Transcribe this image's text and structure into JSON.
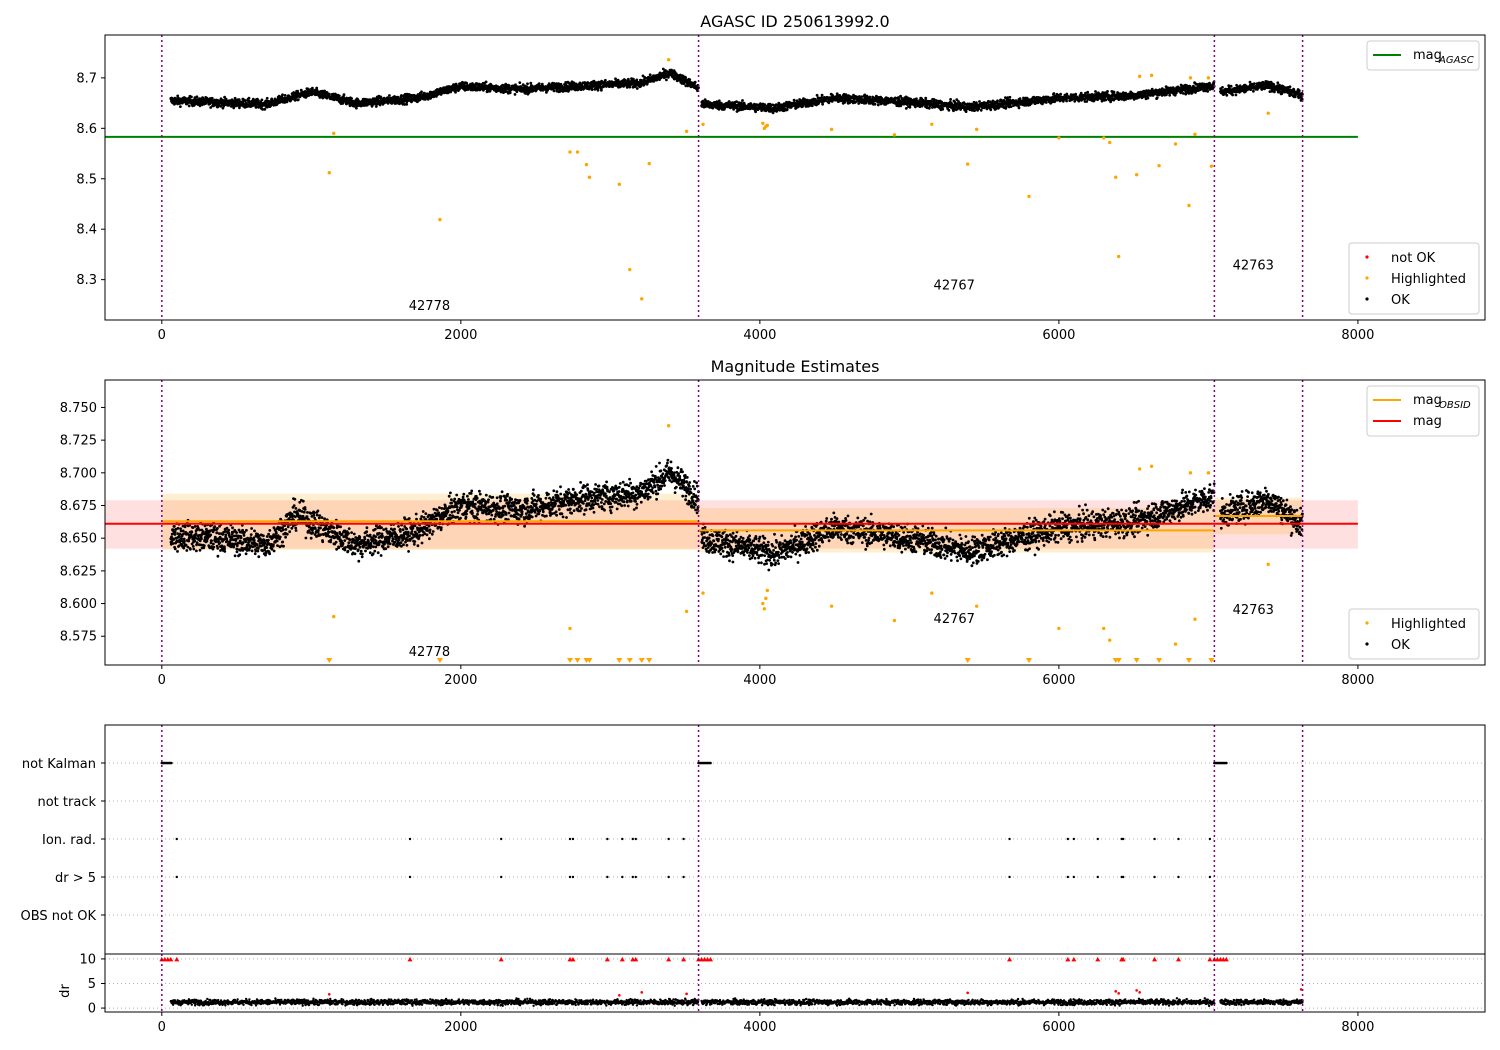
{
  "chart_data": [
    {
      "type": "scatter",
      "title": "AGASC ID 250613992.0",
      "xlim": [
        -380,
        8850
      ],
      "ylim": [
        8.22,
        8.785
      ],
      "xticks": [
        0,
        2000,
        4000,
        6000,
        8000
      ],
      "yticks": [
        8.3,
        8.4,
        8.5,
        8.6,
        8.7
      ],
      "yticklabels": [
        "8.3",
        "8.4",
        "8.5",
        "8.6",
        "8.7"
      ],
      "obsid_boundaries": [
        0,
        3590,
        7040,
        7630
      ],
      "obsid_labels": [
        {
          "text": "42778",
          "x": 1790,
          "y": 8.24
        },
        {
          "text": "42767",
          "x": 5300,
          "y": 8.28
        },
        {
          "text": "42763",
          "x": 7300,
          "y": 8.32
        }
      ],
      "legend_top": {
        "position": "top-right",
        "entries": [
          {
            "label": "mag",
            "sub": "AGASC",
            "color": "#008000"
          }
        ]
      },
      "legend_bottom": {
        "position": "bottom-right",
        "entries": [
          {
            "label": "not OK",
            "color": "#ff0000"
          },
          {
            "label": "Highlighted",
            "color": "#ffa500"
          },
          {
            "label": "OK",
            "color": "#000000"
          }
        ]
      },
      "lines": [
        {
          "name": "mag_AGASC",
          "color": "#008000",
          "x": [
            -380,
            8000
          ],
          "y": [
            8.583,
            8.583
          ]
        }
      ],
      "series": [
        {
          "name": "OK",
          "color": "#000000",
          "segments": [
            {
              "x0": 60,
              "x1": 3590,
              "base": [
                [
                  60,
                  8.655
                ],
                [
                  700,
                  8.648
                ],
                [
                  1000,
                  8.672
                ],
                [
                  1300,
                  8.65
                ],
                [
                  1700,
                  8.66
                ],
                [
                  2000,
                  8.683
                ],
                [
                  2400,
                  8.678
                ],
                [
                  2800,
                  8.684
                ],
                [
                  3200,
                  8.69
                ],
                [
                  3400,
                  8.71
                ],
                [
                  3590,
                  8.68
                ]
              ]
            },
            {
              "x0": 3610,
              "x1": 7040,
              "base": [
                [
                  3610,
                  8.648
                ],
                [
                  4100,
                  8.64
                ],
                [
                  4500,
                  8.66
                ],
                [
                  5000,
                  8.652
                ],
                [
                  5400,
                  8.642
                ],
                [
                  6000,
                  8.66
                ],
                [
                  6500,
                  8.665
                ],
                [
                  7040,
                  8.685
                ]
              ]
            },
            {
              "x0": 7080,
              "x1": 7630,
              "base": [
                [
                  7080,
                  8.672
                ],
                [
                  7400,
                  8.685
                ],
                [
                  7630,
                  8.665
                ]
              ]
            }
          ]
        },
        {
          "name": "Highlighted",
          "color": "#ffa500",
          "x": [
            1120,
            1150,
            1860,
            2730,
            2780,
            2840,
            2860,
            3060,
            3130,
            3210,
            3260,
            3390,
            3510,
            3620,
            4020,
            4030,
            4040,
            4050,
            4480,
            4900,
            5150,
            5390,
            5450,
            5800,
            6000,
            6300,
            6340,
            6380,
            6400,
            6520,
            6540,
            6620,
            6670,
            6780,
            6870,
            6880,
            6910,
            7000,
            7020,
            7400
          ],
          "y": [
            8.512,
            8.59,
            8.419,
            8.553,
            8.553,
            8.528,
            8.503,
            8.489,
            8.32,
            8.262,
            8.53,
            8.736,
            8.594,
            8.608,
            8.61,
            8.6,
            8.604,
            8.606,
            8.598,
            8.587,
            8.608,
            8.529,
            8.598,
            8.465,
            8.581,
            8.581,
            8.572,
            8.503,
            8.346,
            8.508,
            8.703,
            8.705,
            8.526,
            8.569,
            8.447,
            8.7,
            8.588,
            8.7,
            8.525,
            8.63
          ]
        }
      ]
    },
    {
      "type": "scatter",
      "title": "Magnitude Estimates",
      "xlim": [
        -380,
        8850
      ],
      "ylim": [
        8.553,
        8.771
      ],
      "xticks": [
        0,
        2000,
        4000,
        6000,
        8000
      ],
      "yticks": [
        8.575,
        8.6,
        8.625,
        8.65,
        8.675,
        8.7,
        8.725,
        8.75
      ],
      "yticklabels": [
        "8.575",
        "8.600",
        "8.625",
        "8.650",
        "8.675",
        "8.700",
        "8.725",
        "8.750"
      ],
      "obsid_boundaries": [
        0,
        3590,
        7040,
        7630
      ],
      "obsid_labels": [
        {
          "text": "42778",
          "x": 1790,
          "y": 8.56
        },
        {
          "text": "42767",
          "x": 5300,
          "y": 8.585
        },
        {
          "text": "42763",
          "x": 7300,
          "y": 8.592
        }
      ],
      "legend_top": {
        "position": "top-right",
        "entries": [
          {
            "label": "mag",
            "sub": "OBSID",
            "color": "#ffa500"
          },
          {
            "label": "mag",
            "sub": "",
            "color": "#ff0000"
          }
        ]
      },
      "legend_bottom": {
        "position": "bottom-right",
        "entries": [
          {
            "label": "Highlighted",
            "color": "#ffa500"
          },
          {
            "label": "OK",
            "color": "#000000"
          }
        ]
      },
      "bands": [
        {
          "x": [
            -380,
            8000
          ],
          "y": [
            8.642,
            8.679
          ],
          "color": "#ff0000",
          "opacity": 0.12
        },
        {
          "x": [
            0,
            3590
          ],
          "y": [
            8.641,
            8.684
          ],
          "color": "#ffa500",
          "opacity": 0.18
        },
        {
          "x": [
            3590,
            7040
          ],
          "y": [
            8.639,
            8.673
          ],
          "color": "#ffa500",
          "opacity": 0.18
        },
        {
          "x": [
            7040,
            7630
          ],
          "y": [
            8.653,
            8.681
          ],
          "color": "#ffa500",
          "opacity": 0.18
        }
      ],
      "lines": [
        {
          "name": "mag",
          "color": "#ff0000",
          "x": [
            -380,
            8000
          ],
          "y": [
            8.661,
            8.661
          ]
        },
        {
          "name": "mag_OBSID",
          "color": "#ffa500",
          "x": [
            0,
            3590
          ],
          "y": [
            8.663,
            8.663
          ]
        },
        {
          "name": "mag_OBSID",
          "color": "#ffa500",
          "x": [
            3590,
            7040
          ],
          "y": [
            8.656,
            8.656
          ]
        },
        {
          "name": "mag_OBSID",
          "color": "#ffa500",
          "x": [
            7040,
            7630
          ],
          "y": [
            8.667,
            8.667
          ]
        }
      ],
      "series": [
        {
          "name": "OK",
          "color": "#000000",
          "segments": [
            {
              "x0": 60,
              "x1": 3590,
              "base": [
                [
                  60,
                  8.652
                ],
                [
                  400,
                  8.65
                ],
                [
                  700,
                  8.645
                ],
                [
                  900,
                  8.668
                ],
                [
                  1300,
                  8.645
                ],
                [
                  1700,
                  8.655
                ],
                [
                  2000,
                  8.675
                ],
                [
                  2400,
                  8.672
                ],
                [
                  2800,
                  8.68
                ],
                [
                  3200,
                  8.685
                ],
                [
                  3400,
                  8.7
                ],
                [
                  3590,
                  8.68
                ]
              ]
            },
            {
              "x0": 3610,
              "x1": 7040,
              "base": [
                [
                  3610,
                  8.65
                ],
                [
                  4100,
                  8.638
                ],
                [
                  4500,
                  8.658
                ],
                [
                  5000,
                  8.65
                ],
                [
                  5400,
                  8.64
                ],
                [
                  6000,
                  8.658
                ],
                [
                  6500,
                  8.663
                ],
                [
                  7040,
                  8.682
                ]
              ]
            },
            {
              "x0": 7080,
              "x1": 7630,
              "base": [
                [
                  7080,
                  8.668
                ],
                [
                  7400,
                  8.68
                ],
                [
                  7630,
                  8.66
                ]
              ]
            }
          ]
        },
        {
          "name": "Highlighted",
          "color": "#ffa500",
          "x": [
            1150,
            2730,
            3390,
            3510,
            3620,
            4020,
            4030,
            4040,
            4050,
            4480,
            4900,
            5150,
            5450,
            6000,
            6300,
            6340,
            6540,
            6620,
            6780,
            6880,
            6910,
            7000,
            7400
          ],
          "y": [
            8.59,
            8.581,
            8.736,
            8.594,
            8.608,
            8.6,
            8.596,
            8.604,
            8.61,
            8.598,
            8.587,
            8.608,
            8.598,
            8.581,
            8.581,
            8.572,
            8.703,
            8.705,
            8.569,
            8.7,
            8.588,
            8.7,
            8.63
          ]
        },
        {
          "name": "Highlighted (below axis)",
          "color": "#ffa500",
          "marker": "triangle-down",
          "x": [
            1120,
            1860,
            2730,
            2780,
            2840,
            2860,
            3060,
            3130,
            3210,
            3260,
            5390,
            5800,
            6380,
            6400,
            6520,
            6670,
            6870,
            7020
          ],
          "y": [
            8.553,
            8.553,
            8.553,
            8.553,
            8.553,
            8.553,
            8.553,
            8.553,
            8.553,
            8.553,
            8.553,
            8.553,
            8.553,
            8.553,
            8.553,
            8.553,
            8.553,
            8.553
          ]
        }
      ]
    },
    {
      "type": "scatter",
      "title": "",
      "xlim": [
        -380,
        8850
      ],
      "xticks": [
        0,
        2000,
        4000,
        6000,
        8000
      ],
      "obsid_boundaries": [
        0,
        3590,
        7040,
        7630
      ],
      "flag_rows": [
        "not Kalman",
        "not track",
        "Ion. rad.",
        "dr > 5",
        "OBS not OK"
      ],
      "flags": {
        "not Kalman": [
          [
            0,
            70
          ],
          [
            3590,
            3670
          ],
          [
            7040,
            7120
          ]
        ],
        "not track": [],
        "Ion. rad.": [
          100,
          1660,
          2270,
          2730,
          2750,
          2980,
          3080,
          3150,
          3170,
          3390,
          3490,
          7010,
          5670,
          6060,
          6100,
          6260,
          6420,
          6430,
          6640,
          6800
        ],
        "dr > 5": [
          100,
          1660,
          2270,
          2730,
          2750,
          2980,
          3080,
          3150,
          3170,
          3390,
          3490,
          7010,
          5670,
          6060,
          6100,
          6260,
          6420,
          6430,
          6640,
          6800
        ],
        "OBS not OK": []
      },
      "dr_panel": {
        "ylabel": "dr",
        "ylim": [
          -0.8,
          11
        ],
        "yticks": [
          0,
          5,
          10
        ],
        "yticklabels": [
          "0",
          "5",
          "10"
        ],
        "segments": [
          [
            60,
            3590
          ],
          [
            3610,
            7040
          ],
          [
            7080,
            7630
          ]
        ],
        "typical": 1.2,
        "clipped_red_x": [
          0,
          20,
          40,
          60,
          100,
          1660,
          2270,
          2730,
          2750,
          2980,
          3080,
          3150,
          3170,
          3390,
          3490,
          3590,
          3610,
          3630,
          3650,
          3670,
          5670,
          6060,
          6100,
          6260,
          6420,
          6430,
          6640,
          6800,
          7010,
          7040,
          7060,
          7080,
          7100,
          7120
        ],
        "red_points": [
          [
            1120,
            2.8
          ],
          [
            3060,
            2.6
          ],
          [
            3210,
            3.2
          ],
          [
            3510,
            2.9
          ],
          [
            5390,
            3.1
          ],
          [
            6380,
            3.4
          ],
          [
            6400,
            3.0
          ],
          [
            6520,
            3.6
          ],
          [
            6540,
            3.2
          ],
          [
            7620,
            3.8
          ]
        ]
      }
    }
  ]
}
